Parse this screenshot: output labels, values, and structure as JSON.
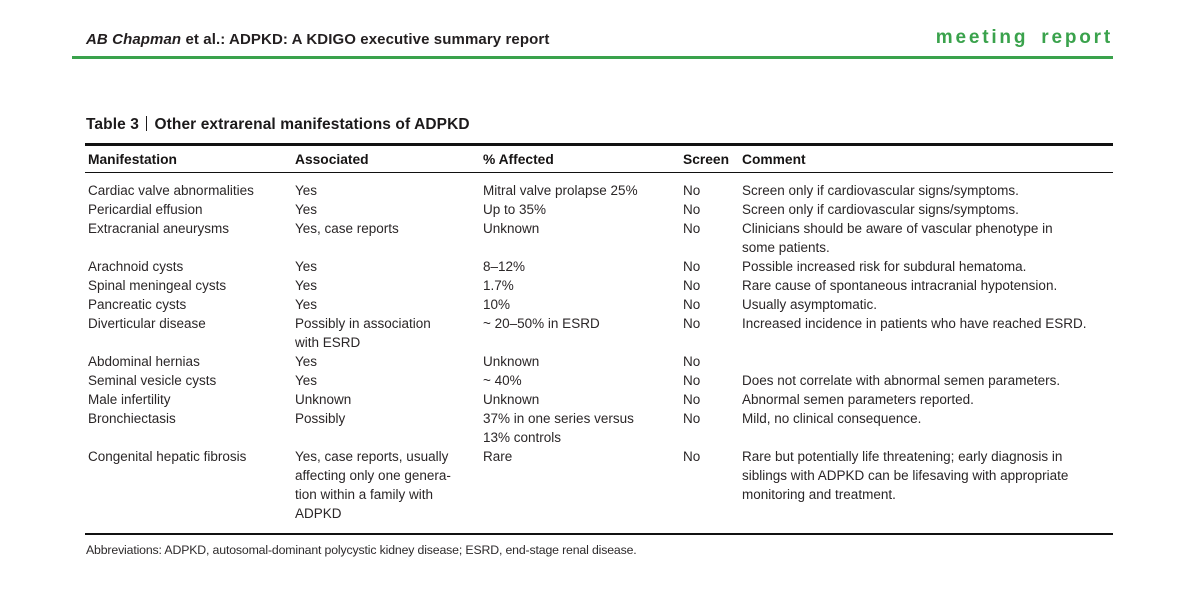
{
  "colors": {
    "accent_green": "#3aa24c",
    "rule_black": "#111111",
    "text": "#262324"
  },
  "running_head": {
    "authors": "AB Chapman",
    "rest": " et al.: ADPKD: A KDIGO executive summary report"
  },
  "section_label": "meeting report",
  "table": {
    "label": "Table 3",
    "title": "Other extrarenal manifestations of ADPKD",
    "columns": [
      "Manifestation",
      "Associated",
      "% Affected",
      "Screen",
      "Comment"
    ],
    "rows": [
      {
        "manifestation": "Cardiac valve abnormalities",
        "associated": "Yes",
        "affected": "Mitral valve prolapse 25%",
        "screen": "No",
        "comment": "Screen only if cardiovascular signs/symptoms."
      },
      {
        "manifestation": "Pericardial effusion",
        "associated": "Yes",
        "affected": "Up to 35%",
        "screen": "No",
        "comment": "Screen only if cardiovascular signs/symptoms."
      },
      {
        "manifestation": "Extracranial aneurysms",
        "associated": "Yes, case reports",
        "affected": "Unknown",
        "screen": "No",
        "comment": "Clinicians should be aware of vascular phenotype in\nsome patients."
      },
      {
        "manifestation": "Arachnoid cysts",
        "associated": "Yes",
        "affected": "8–12%",
        "screen": "No",
        "comment": "Possible increased risk for subdural hematoma."
      },
      {
        "manifestation": "Spinal meningeal cysts",
        "associated": "Yes",
        "affected": "1.7%",
        "screen": "No",
        "comment": "Rare cause of spontaneous intracranial hypotension."
      },
      {
        "manifestation": "Pancreatic cysts",
        "associated": "Yes",
        "affected": "10%",
        "screen": "No",
        "comment": "Usually asymptomatic."
      },
      {
        "manifestation": "Diverticular disease",
        "associated": "Possibly in association\nwith ESRD",
        "affected": "~ 20–50% in ESRD",
        "screen": "No",
        "comment": "Increased incidence in patients who have reached ESRD."
      },
      {
        "manifestation": "Abdominal hernias",
        "associated": "Yes",
        "affected": "Unknown",
        "screen": "No",
        "comment": ""
      },
      {
        "manifestation": "Seminal vesicle cysts",
        "associated": "Yes",
        "affected": "~ 40%",
        "screen": "No",
        "comment": "Does not correlate with abnormal semen parameters."
      },
      {
        "manifestation": "Male infertility",
        "associated": "Unknown",
        "affected": "Unknown",
        "screen": "No",
        "comment": "Abnormal semen parameters reported."
      },
      {
        "manifestation": "Bronchiectasis",
        "associated": "Possibly",
        "affected": "37% in one series versus\n13% controls",
        "screen": "No",
        "comment": "Mild, no clinical consequence."
      },
      {
        "manifestation": "Congenital hepatic fibrosis",
        "associated": "Yes, case reports, usually\naffecting only one genera-\ntion within a family with\nADPKD",
        "affected": "Rare",
        "screen": "No",
        "comment": "Rare but potentially life threatening; early diagnosis in\nsiblings with ADPKD can be lifesaving with appropriate\nmonitoring and treatment."
      }
    ]
  },
  "footnote": "Abbreviations: ADPKD, autosomal-dominant polycystic kidney disease; ESRD, end-stage renal disease."
}
